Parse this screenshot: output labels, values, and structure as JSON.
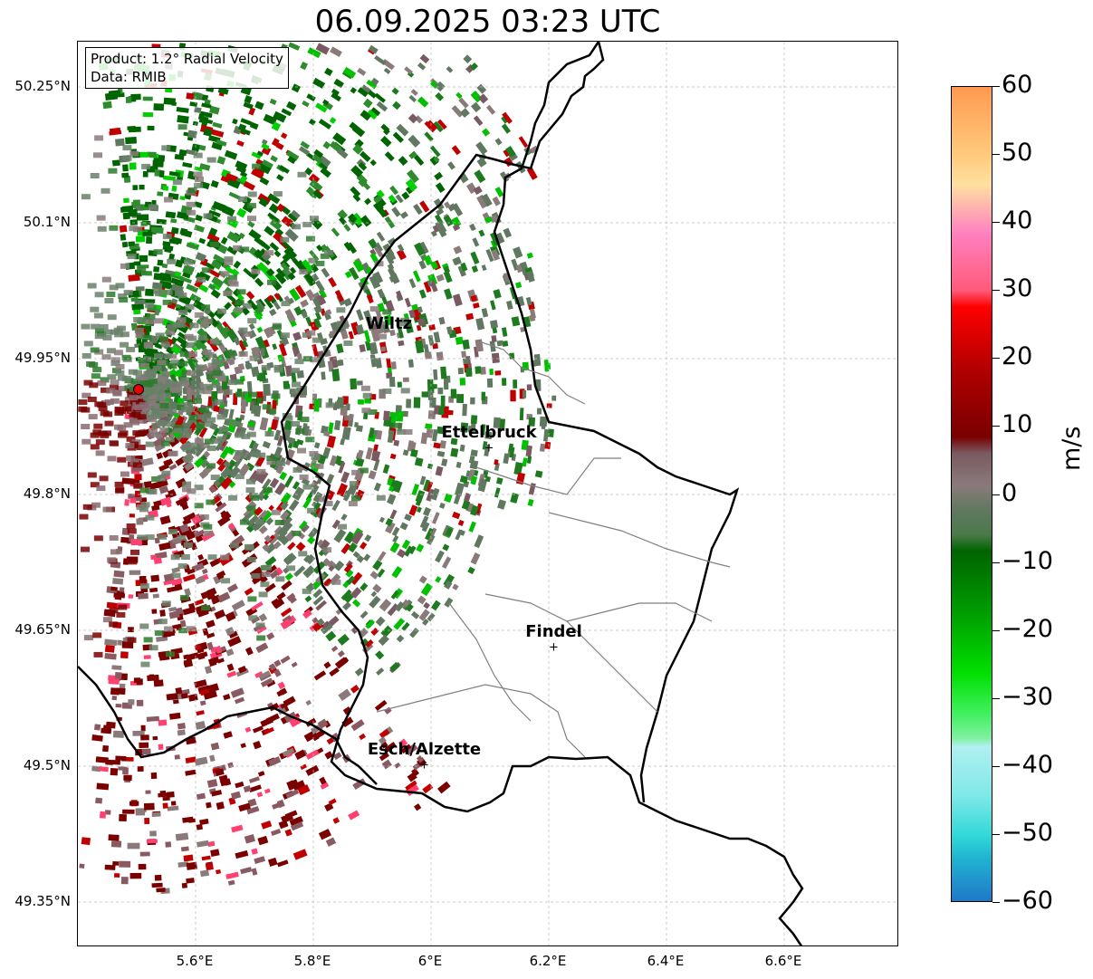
{
  "title": "06.09.2025 03:23 UTC",
  "info_box": {
    "product": "Product: 1.2° Radial Velocity",
    "data": "Data: RMIB"
  },
  "latitude_labels": [
    "50.25°N",
    "50.1°N",
    "49.95°N",
    "49.8°N",
    "49.65°N",
    "49.5°N",
    "49.35°N"
  ],
  "longitude_labels": [
    "5.6°E",
    "5.8°E",
    "6°E",
    "6.2°E",
    "6.4°E",
    "6.6°E"
  ],
  "colorbar": {
    "unit": "m/s",
    "min": -60,
    "max": 60,
    "tick_labels": [
      "60",
      "50",
      "40",
      "30",
      "20",
      "10",
      "0",
      "−10",
      "−20",
      "−30",
      "−40",
      "−50",
      "−60"
    ],
    "colors": {
      "positive_high": "#ff9a50",
      "light_orange": "#ffc87a",
      "pink": "#ff80c0",
      "red": "#ff0000",
      "dark_red": "#7a0000",
      "brown_grey": "#7a5a62",
      "grey_green": "#607860",
      "dark_green": "#006400",
      "green": "#00e000",
      "light_green": "#80f0a0",
      "light_cyan": "#b0f0f0",
      "cyan": "#30d8d8",
      "blue": "#1f78c8"
    }
  },
  "cities": [
    {
      "name": "Wiltz",
      "lon": 5.93,
      "lat": 49.97,
      "marker": false
    },
    {
      "name": "Ettelbruck",
      "lon": 6.1,
      "lat": 49.85,
      "marker": true
    },
    {
      "name": "Findel",
      "lon": 6.21,
      "lat": 49.63,
      "marker": true
    },
    {
      "name": "Esch/Alzette",
      "lon": 5.99,
      "lat": 49.5,
      "marker": true
    }
  ],
  "radar_site": {
    "lon": 5.505,
    "lat": 49.915
  }
}
